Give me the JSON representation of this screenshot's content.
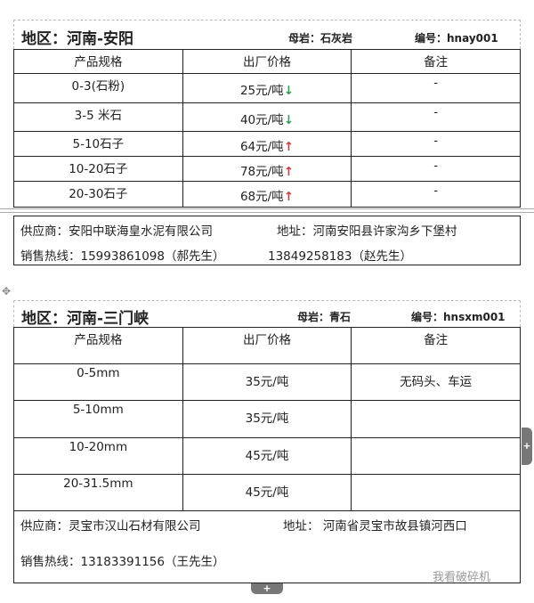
{
  "sections": [
    {
      "region": "地区：河南-安阳",
      "rock": "母岩：石灰岩",
      "code": "编号：hnay001",
      "headers": [
        "产品规格",
        "出厂价格",
        "备注"
      ],
      "rows": [
        {
          "spec": "0-3(石粉)",
          "price": "25元/吨",
          "trend": "down",
          "note": "-"
        },
        {
          "spec": "3-5 米石",
          "price": "40元/吨",
          "trend": "down",
          "note": "-"
        },
        {
          "spec": "5-10石子",
          "price": "64元/吨",
          "trend": "up",
          "note": "-"
        },
        {
          "spec": "10-20石子",
          "price": "78元/吨",
          "trend": "up",
          "note": "-"
        },
        {
          "spec": "20-30石子",
          "price": "68元/吨",
          "trend": "up",
          "note": "-"
        }
      ],
      "supplier": "供应商：安阳中联海皇水泥有限公司",
      "address": "地址：河南安阳县许家沟乡下堡村",
      "hotline": "销售热线：15993861098（郝先生）",
      "hotline2": "13849258183（赵先生）"
    },
    {
      "region": "地区：河南-三门峡",
      "rock": "母岩：青石",
      "code": "编号：hnsxm001",
      "headers": [
        "产品规格",
        "出厂价格",
        "备注"
      ],
      "rows": [
        {
          "spec": "0-5mm",
          "price": "35元/吨",
          "note": "无码头、车运"
        },
        {
          "spec": "5-10mm",
          "price": "35元/吨",
          "note": ""
        },
        {
          "spec": "10-20mm",
          "price": "45元/吨",
          "note": ""
        },
        {
          "spec": "20-31.5mm",
          "price": "45元/吨",
          "note": ""
        }
      ],
      "supplier": "供应商：灵宝市汉山石材有限公司",
      "address": "地址： 河南省灵宝市故县镇河西口",
      "hotline": "销售热线：13183391156（王先生）"
    }
  ],
  "trend_icons": {
    "down": "↓",
    "up": "↑"
  },
  "trend_colors": {
    "down": "#2a9d55",
    "up": "#d23a3a"
  },
  "watermark": "我看破碎机"
}
